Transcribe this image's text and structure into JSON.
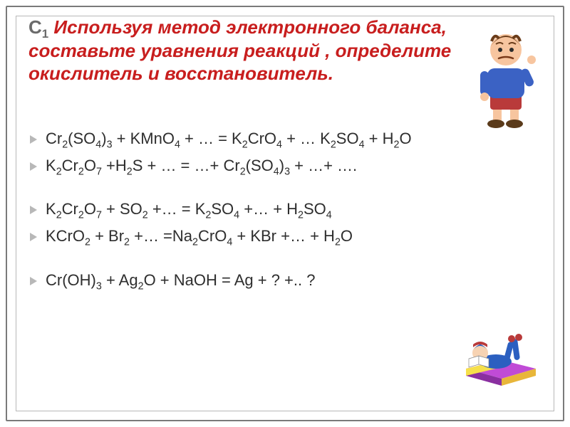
{
  "heading": {
    "prefix": "С",
    "prefix_sub": "1",
    "rest": " Используя метод электронного баланса, составьте уравнения реакций , определите окислитель и восстановитель.",
    "color": "#c81e1e",
    "prefix_color": "#6b6b6b",
    "fontsize": 26,
    "italic": true,
    "bold": true
  },
  "equations": {
    "text_color": "#2e2e2e",
    "bullet_color": "#b8b8b8",
    "fontsize": 22,
    "items": [
      "Cr₂(SO₄)₃ + KMnO₄ + … = K₂CrO₄ + … K₂SO₄ + H₂O",
      "K₂Cr₂O₇ +H₂S + … = …+ Cr₂(SO₄)₃ +  …+ ….",
      "",
      "K₂Cr₂O₇ + SO₂ +… = K₂SO₄  +…  + H₂SO₄",
      "KCrO₂ + Br₂ +… =Na₂CrO₄ + KBr +… + H₂O",
      "",
      "Cr(OH)₃ + Ag₂O + NaOH = Ag + ? +.. ?"
    ]
  },
  "frame": {
    "outer_border_color": "#7a7a7a",
    "inner_border_color": "#b8b8b8",
    "background": "#ffffff"
  },
  "clipart": {
    "boy": {
      "skin": "#f7c59f",
      "hair": "#6b3d1a",
      "shirt": "#3b62c4",
      "shorts": "#b93a3a",
      "shoes": "#5a3a1a"
    },
    "reader": {
      "book_left": "#f6e04b",
      "book_right": "#c04bd6",
      "face": "#f7d3b3",
      "hair": "#2b5fc0",
      "cap": "#b93a3a"
    }
  }
}
